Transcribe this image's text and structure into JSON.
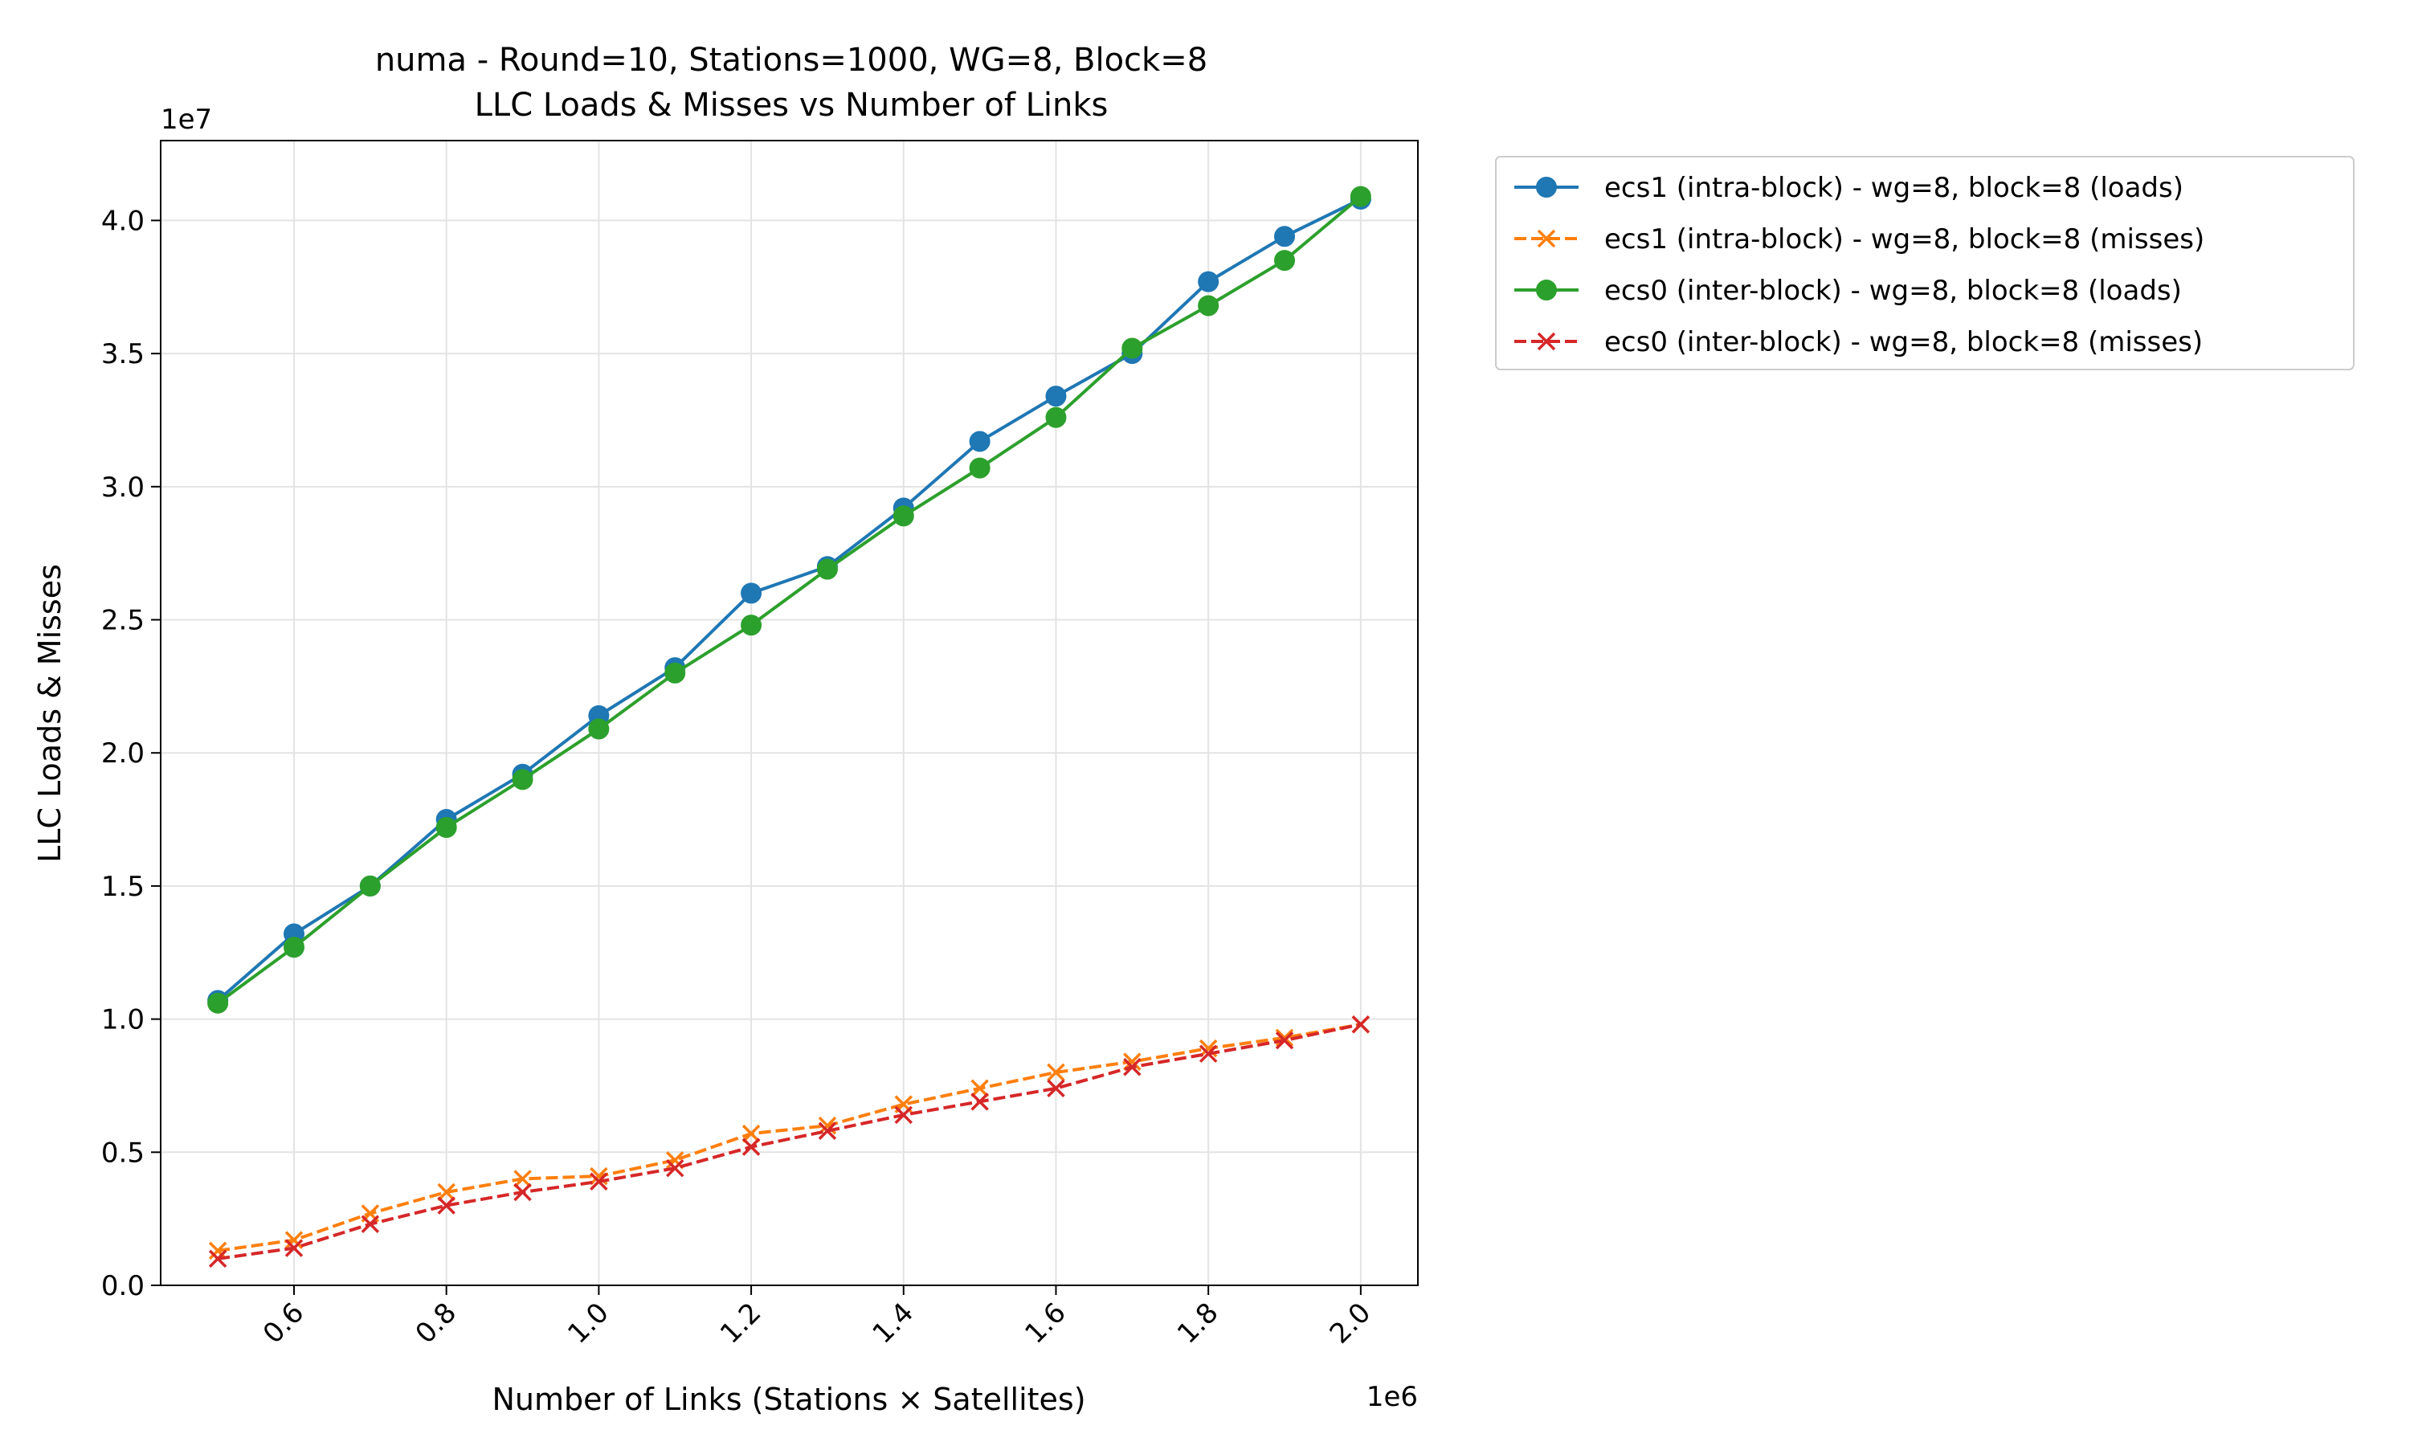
{
  "chart_data": {
    "type": "line",
    "title": "numa - Round=10, Stations=1000, WG=8, Block=8",
    "subtitle": "LLC Loads & Misses vs Number of Links",
    "xlabel": "Number of Links (Stations × Satellites)",
    "ylabel": "LLC Loads & Misses",
    "x_exponent": "1e6",
    "y_exponent": "1e7",
    "xlim": [
      425000,
      2075000
    ],
    "ylim": [
      0,
      43000000
    ],
    "x_ticks": [
      600000,
      800000,
      1000000,
      1200000,
      1400000,
      1600000,
      1800000,
      2000000
    ],
    "x_tick_labels": [
      "0.6",
      "0.8",
      "1.0",
      "1.2",
      "1.4",
      "1.6",
      "1.8",
      "2.0"
    ],
    "y_ticks": [
      0,
      5000000,
      10000000,
      15000000,
      20000000,
      25000000,
      30000000,
      35000000,
      40000000
    ],
    "y_tick_labels": [
      "0.0",
      "0.5",
      "1.0",
      "1.5",
      "2.0",
      "2.5",
      "3.0",
      "3.5",
      "4.0"
    ],
    "grid": true,
    "legend_position": "outside-top-right",
    "x": [
      500000,
      600000,
      700000,
      800000,
      900000,
      1000000,
      1100000,
      1200000,
      1300000,
      1400000,
      1500000,
      1600000,
      1700000,
      1800000,
      1900000,
      2000000
    ],
    "series": [
      {
        "name": "ecs1 (intra-block) - wg=8, block=8 (loads)",
        "color": "#1f77b4",
        "dash": "solid",
        "marker": "circle",
        "values": [
          10700000,
          13200000,
          15000000,
          17500000,
          19200000,
          21400000,
          23200000,
          26000000,
          27000000,
          29200000,
          31700000,
          33400000,
          35000000,
          37700000,
          39400000,
          40800000
        ]
      },
      {
        "name": "ecs1 (intra-block) - wg=8, block=8 (misses)",
        "color": "#ff7f0e",
        "dash": "dashed",
        "marker": "x",
        "values": [
          1300000,
          1700000,
          2700000,
          3500000,
          4000000,
          4100000,
          4700000,
          5700000,
          6000000,
          6800000,
          7400000,
          8000000,
          8400000,
          8900000,
          9300000,
          9800000
        ]
      },
      {
        "name": "ecs0 (inter-block) - wg=8, block=8 (loads)",
        "color": "#2ca02c",
        "dash": "solid",
        "marker": "circle",
        "values": [
          10600000,
          12700000,
          15000000,
          17200000,
          19000000,
          20900000,
          23000000,
          24800000,
          26900000,
          28900000,
          30700000,
          32600000,
          35200000,
          36800000,
          38500000,
          40900000
        ]
      },
      {
        "name": "ecs0 (inter-block) - wg=8, block=8 (misses)",
        "color": "#d62728",
        "dash": "dashed",
        "marker": "x",
        "values": [
          1000000,
          1400000,
          2300000,
          3000000,
          3500000,
          3900000,
          4400000,
          5200000,
          5800000,
          6400000,
          6900000,
          7400000,
          8200000,
          8700000,
          9200000,
          9800000
        ]
      }
    ]
  }
}
